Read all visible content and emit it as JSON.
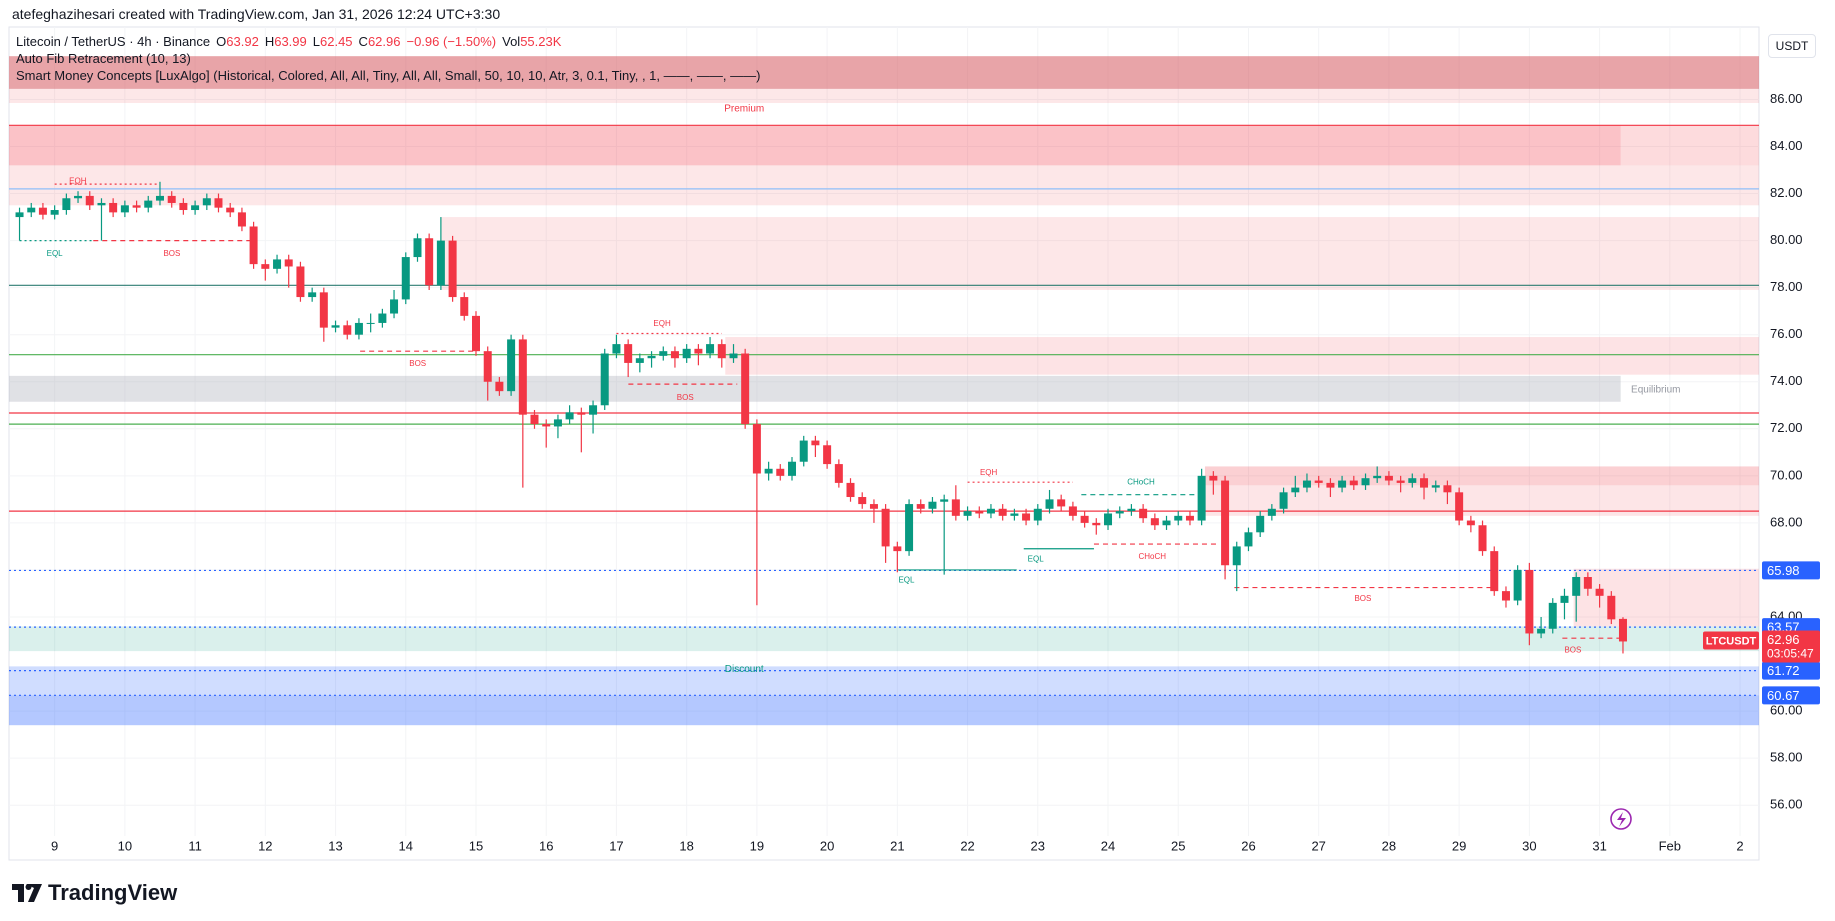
{
  "header": {
    "caption": "atefeghazihesari created with TradingView.com, Jan 31, 2026 12:24 UTC+3:30"
  },
  "legend": {
    "symbol": "Litecoin / TetherUS · 4h · Binance",
    "ohlc": [
      {
        "label": "O",
        "value": 63.92
      },
      {
        "label": "H",
        "value": 63.99
      },
      {
        "label": "L",
        "value": 62.45
      },
      {
        "label": "C",
        "value": 62.96
      }
    ],
    "change": "−0.96 (−1.50%)",
    "volume_label": "Vol",
    "volume": "55.23K",
    "indicators": [
      "Auto Fib Retracement (10, 13)",
      "Smart Money Concepts [LuxAlgo] (Historical, Colored, All, All, Tiny, All, All, Small, 50, 10, 10, Atr, 3, 0.1, Tiny, , 1, ——, ——, ——)"
    ]
  },
  "currency": "USDT",
  "brand": "TradingView",
  "chart_data": {
    "type": "candlestick",
    "up_color": "#089981",
    "down_color": "#f23645",
    "grid": true,
    "xlim": [
      8.35,
      33.27
    ],
    "ylim": [
      53.67,
      89.08
    ],
    "xticks": [
      9,
      10,
      11,
      12,
      13,
      14,
      15,
      16,
      17,
      18,
      19,
      20,
      21,
      22,
      23,
      24,
      25,
      26,
      27,
      28,
      29,
      30,
      31,
      {
        "value": 32,
        "label": "Feb"
      },
      {
        "value": 33,
        "label": "2"
      }
    ],
    "yticks": [
      {
        "value": 56,
        "label": "56.00"
      },
      {
        "value": 58,
        "label": "58.00"
      },
      {
        "value": 60,
        "label": "60.00"
      },
      {
        "value": 64,
        "label": "64.00"
      },
      {
        "value": 66,
        "label": "66.00"
      },
      {
        "value": 68,
        "label": "68.00"
      },
      {
        "value": 70,
        "label": "70.00"
      },
      {
        "value": 72,
        "label": "72.00"
      },
      {
        "value": 74,
        "label": "74.00"
      },
      {
        "value": 76,
        "label": "76.00"
      },
      {
        "value": 78,
        "label": "78.00"
      },
      {
        "value": 80,
        "label": "80.00"
      },
      {
        "value": 82,
        "label": "82.00"
      },
      {
        "value": 84,
        "label": "84.00"
      },
      {
        "value": 86,
        "label": "86.00"
      }
    ],
    "x": [
      8.5,
      8.667,
      8.833,
      9,
      9.167,
      9.333,
      9.5,
      9.667,
      9.833,
      10,
      10.167,
      10.333,
      10.5,
      10.667,
      10.833,
      11,
      11.167,
      11.333,
      11.5,
      11.667,
      11.833,
      12,
      12.167,
      12.333,
      12.5,
      12.667,
      12.833,
      13,
      13.167,
      13.333,
      13.5,
      13.667,
      13.833,
      14,
      14.167,
      14.333,
      14.5,
      14.667,
      14.833,
      15,
      15.167,
      15.333,
      15.5,
      15.667,
      15.833,
      16,
      16.167,
      16.333,
      16.5,
      16.667,
      16.833,
      17,
      17.167,
      17.333,
      17.5,
      17.667,
      17.833,
      18,
      18.167,
      18.333,
      18.5,
      18.667,
      18.833,
      19,
      19.167,
      19.333,
      19.5,
      19.667,
      19.833,
      20,
      20.167,
      20.333,
      20.5,
      20.667,
      20.833,
      21,
      21.167,
      21.333,
      21.5,
      21.667,
      21.833,
      22,
      22.167,
      22.333,
      22.5,
      22.667,
      22.833,
      23,
      23.167,
      23.333,
      23.5,
      23.667,
      23.833,
      24,
      24.167,
      24.333,
      24.5,
      24.667,
      24.833,
      25,
      25.167,
      25.333,
      25.5,
      25.667,
      25.833,
      26,
      26.167,
      26.333,
      26.5,
      26.667,
      26.833,
      27,
      27.167,
      27.333,
      27.5,
      27.667,
      27.833,
      28,
      28.167,
      28.333,
      28.5,
      28.667,
      28.833,
      29,
      29.167,
      29.333,
      29.5,
      29.667,
      29.833,
      30,
      30.167,
      30.333,
      30.5,
      30.667,
      30.833,
      31,
      31.167,
      31.333
    ],
    "open": [
      81.0,
      81.2,
      81.4,
      81.1,
      81.3,
      81.8,
      81.9,
      81.5,
      81.6,
      81.2,
      81.5,
      81.4,
      81.7,
      81.9,
      81.6,
      81.3,
      81.5,
      81.8,
      81.4,
      81.2,
      80.6,
      79.0,
      78.8,
      79.2,
      78.9,
      77.6,
      77.8,
      76.3,
      76.4,
      76.0,
      76.5,
      76.5,
      76.9,
      77.5,
      79.3,
      80.1,
      78.1,
      80.0,
      77.6,
      76.8,
      75.3,
      74.0,
      73.6,
      75.8,
      72.6,
      72.2,
      72.1,
      72.4,
      72.7,
      72.6,
      73.0,
      75.2,
      75.6,
      74.8,
      75.0,
      75.1,
      75.3,
      75.0,
      75.4,
      75.2,
      75.6,
      75.0,
      75.2,
      72.2,
      70.1,
      70.3,
      70.0,
      70.6,
      71.5,
      71.3,
      70.5,
      69.7,
      69.1,
      68.8,
      68.6,
      67.0,
      66.8,
      68.8,
      68.6,
      68.9,
      69.0,
      68.3,
      68.5,
      68.4,
      68.6,
      68.3,
      68.4,
      68.1,
      68.6,
      69.0,
      68.7,
      68.3,
      68.0,
      67.9,
      68.4,
      68.5,
      68.6,
      68.2,
      67.9,
      68.1,
      68.3,
      68.1,
      70.0,
      69.8,
      66.2,
      67.0,
      67.6,
      68.3,
      68.6,
      69.3,
      69.5,
      69.8,
      69.7,
      69.5,
      69.8,
      69.6,
      69.9,
      70.0,
      69.8,
      69.7,
      69.9,
      69.5,
      69.6,
      69.3,
      68.1,
      67.9,
      66.8,
      65.1,
      64.7,
      66.0,
      63.3,
      63.5,
      64.6,
      64.9,
      65.7,
      65.2,
      64.9,
      63.92
    ],
    "high": [
      81.4,
      81.6,
      81.6,
      81.5,
      82.0,
      82.1,
      82.1,
      81.8,
      81.8,
      81.7,
      81.7,
      81.9,
      82.5,
      82.1,
      81.8,
      81.7,
      82.0,
      82.0,
      81.6,
      81.4,
      80.8,
      79.2,
      79.4,
      79.4,
      79.1,
      78.0,
      78.0,
      76.6,
      76.6,
      76.7,
      76.9,
      77.1,
      77.9,
      79.5,
      80.3,
      80.3,
      81.0,
      80.2,
      77.8,
      77.0,
      75.5,
      74.2,
      76.0,
      76.0,
      72.8,
      72.4,
      72.6,
      73.0,
      72.9,
      73.2,
      75.4,
      76.0,
      75.8,
      75.2,
      75.3,
      75.5,
      75.5,
      75.6,
      75.6,
      75.9,
      75.8,
      75.6,
      75.4,
      72.4,
      70.6,
      70.5,
      70.8,
      71.7,
      71.7,
      71.5,
      70.7,
      69.9,
      69.3,
      69.0,
      68.8,
      67.2,
      69.0,
      69.0,
      69.1,
      69.2,
      69.6,
      68.7,
      68.7,
      68.8,
      68.8,
      68.6,
      68.6,
      68.8,
      69.4,
      69.2,
      68.9,
      68.5,
      68.2,
      68.6,
      68.7,
      68.8,
      68.8,
      68.4,
      68.3,
      68.5,
      68.5,
      70.3,
      70.2,
      70.0,
      67.2,
      67.8,
      68.5,
      68.8,
      69.5,
      70.0,
      70.1,
      70.0,
      69.9,
      70.0,
      70.0,
      70.1,
      70.4,
      70.2,
      70.0,
      70.1,
      70.1,
      69.8,
      69.8,
      69.5,
      68.3,
      68.1,
      67.0,
      65.3,
      66.2,
      66.3,
      64.0,
      64.8,
      65.2,
      65.9,
      65.9,
      65.4,
      65.1,
      63.99
    ],
    "low": [
      80.0,
      81.0,
      80.9,
      80.9,
      81.1,
      81.6,
      81.3,
      80.0,
      81.0,
      81.0,
      81.2,
      81.2,
      81.5,
      81.4,
      81.1,
      81.1,
      81.3,
      81.2,
      81.0,
      80.4,
      78.8,
      78.3,
      78.6,
      78.0,
      77.4,
      77.4,
      75.7,
      76.1,
      75.8,
      75.8,
      76.1,
      76.3,
      76.7,
      77.3,
      79.1,
      77.9,
      77.9,
      77.4,
      76.6,
      75.1,
      73.2,
      73.4,
      73.4,
      69.5,
      72.0,
      71.2,
      71.6,
      72.2,
      71.0,
      71.8,
      72.8,
      75.0,
      74.2,
      74.4,
      74.6,
      74.9,
      74.6,
      74.8,
      74.7,
      75.0,
      74.6,
      74.8,
      72.0,
      64.5,
      69.8,
      69.8,
      69.8,
      70.4,
      70.8,
      70.3,
      69.5,
      68.9,
      68.6,
      68.0,
      66.3,
      65.9,
      66.6,
      68.4,
      68.4,
      65.8,
      68.1,
      68.1,
      68.2,
      68.2,
      68.1,
      68.1,
      67.9,
      67.9,
      68.4,
      68.5,
      68.1,
      67.8,
      67.5,
      67.7,
      68.2,
      68.3,
      68.0,
      67.7,
      67.7,
      67.9,
      67.9,
      67.9,
      69.2,
      65.6,
      65.1,
      66.8,
      67.4,
      68.1,
      68.4,
      69.1,
      69.3,
      69.5,
      69.1,
      69.3,
      69.4,
      69.4,
      69.7,
      69.6,
      69.3,
      69.5,
      69.0,
      69.3,
      68.8,
      67.9,
      67.6,
      66.6,
      64.9,
      64.4,
      64.5,
      62.8,
      63.1,
      63.3,
      63.9,
      63.8,
      64.9,
      64.4,
      63.7,
      62.45
    ],
    "close": [
      81.2,
      81.4,
      81.1,
      81.3,
      81.8,
      81.9,
      81.5,
      81.6,
      81.2,
      81.5,
      81.4,
      81.7,
      81.9,
      81.6,
      81.3,
      81.5,
      81.8,
      81.4,
      81.2,
      80.6,
      79.0,
      78.8,
      79.2,
      78.9,
      77.6,
      77.8,
      76.3,
      76.4,
      76.0,
      76.5,
      76.5,
      76.9,
      77.5,
      79.3,
      80.1,
      78.1,
      80.0,
      77.6,
      76.8,
      75.3,
      74.0,
      73.6,
      75.8,
      72.6,
      72.2,
      72.1,
      72.4,
      72.7,
      72.6,
      73.0,
      75.2,
      75.6,
      74.8,
      75.0,
      75.1,
      75.3,
      75.0,
      75.4,
      75.2,
      75.6,
      75.0,
      75.2,
      72.2,
      70.1,
      70.3,
      70.0,
      70.6,
      71.5,
      71.3,
      70.5,
      69.7,
      69.1,
      68.8,
      68.6,
      67.0,
      66.8,
      68.8,
      68.6,
      68.9,
      69.0,
      68.3,
      68.5,
      68.4,
      68.6,
      68.3,
      68.4,
      68.1,
      68.6,
      69.0,
      68.7,
      68.3,
      68.0,
      67.9,
      68.4,
      68.5,
      68.6,
      68.2,
      67.9,
      68.1,
      68.3,
      68.1,
      70.0,
      69.8,
      66.2,
      67.0,
      67.6,
      68.3,
      68.6,
      69.3,
      69.5,
      69.8,
      69.7,
      69.5,
      69.8,
      69.6,
      69.9,
      70.0,
      69.8,
      69.7,
      69.9,
      69.5,
      69.6,
      69.3,
      68.1,
      67.9,
      66.8,
      65.1,
      64.7,
      66.0,
      63.3,
      63.5,
      64.6,
      64.9,
      65.7,
      65.2,
      64.9,
      63.9,
      62.96
    ],
    "zones": [
      {
        "top": 87.84,
        "bottom": 86.45,
        "from": 8.35,
        "to": 33.27,
        "color": "rgba(214,90,96,0.55)"
      },
      {
        "top": 86.45,
        "bottom": 85.85,
        "from": 8.35,
        "to": 33.27,
        "color": "rgba(242,54,69,0.12)"
      },
      {
        "top": 84.9,
        "bottom": 83.2,
        "from": 8.35,
        "to": 31.3,
        "color": "rgba(242,54,69,0.3)"
      },
      {
        "top": 84.9,
        "bottom": 83.2,
        "from": 31.3,
        "to": 33.27,
        "color": "rgba(242,54,69,0.18)"
      },
      {
        "top": 83.2,
        "bottom": 81.5,
        "from": 8.35,
        "to": 33.27,
        "color": "rgba(242,54,69,0.12)"
      },
      {
        "top": 81.0,
        "bottom": 77.9,
        "from": 14.5,
        "to": 33.27,
        "color": "rgba(242,54,69,0.12)"
      },
      {
        "top": 75.9,
        "bottom": 74.3,
        "from": 18.55,
        "to": 33.27,
        "color": "rgba(242,54,69,0.14)"
      },
      {
        "top": 74.25,
        "bottom": 73.15,
        "from": 8.35,
        "to": 31.3,
        "color": "rgba(178,181,190,0.4)"
      },
      {
        "top": 70.4,
        "bottom": 68.3,
        "from": 25.38,
        "to": 33.27,
        "color": "rgba(242,54,69,0.13)"
      },
      {
        "top": 70.4,
        "bottom": 69.6,
        "from": 25.38,
        "to": 33.27,
        "color": "rgba(242,54,69,0.12)"
      },
      {
        "top": 66.05,
        "bottom": 63.6,
        "from": 30.63,
        "to": 33.27,
        "color": "rgba(242,54,69,0.14)"
      },
      {
        "top": 63.6,
        "bottom": 62.55,
        "from": 8.35,
        "to": 33.27,
        "color": "rgba(8,153,129,0.15)"
      },
      {
        "top": 61.9,
        "bottom": 60.67,
        "from": 8.35,
        "to": 33.27,
        "color": "rgba(41,98,255,0.22)"
      },
      {
        "top": 60.67,
        "bottom": 59.4,
        "from": 8.35,
        "to": 33.27,
        "color": "rgba(41,98,255,0.35)"
      }
    ],
    "levels": [
      {
        "price": 84.9,
        "from": 8.35,
        "to": 33.27,
        "color": "#f23645",
        "style": "solid"
      },
      {
        "price": 82.2,
        "from": 8.35,
        "to": 33.27,
        "color": "#90bff9",
        "style": "solid"
      },
      {
        "price": 78.1,
        "from": 8.35,
        "to": 33.27,
        "color": "#2e7d72",
        "style": "solid"
      },
      {
        "price": 75.15,
        "from": 8.35,
        "to": 33.27,
        "color": "#4caf50",
        "style": "solid"
      },
      {
        "price": 72.67,
        "from": 8.35,
        "to": 33.27,
        "color": "#f23645",
        "style": "solid"
      },
      {
        "price": 72.2,
        "from": 8.35,
        "to": 33.27,
        "color": "#4caf50",
        "style": "solid"
      },
      {
        "price": 68.5,
        "from": 8.35,
        "to": 33.27,
        "color": "#f23645",
        "style": "solid"
      },
      {
        "price": 65.98,
        "from": 8.35,
        "to": 33.27,
        "color": "#2962ff",
        "style": "dotted"
      },
      {
        "price": 63.57,
        "from": 8.35,
        "to": 33.27,
        "color": "#2962ff",
        "style": "dotted"
      },
      {
        "price": 61.72,
        "from": 8.35,
        "to": 33.27,
        "color": "#2962ff",
        "style": "dotted"
      },
      {
        "price": 60.67,
        "from": 8.35,
        "to": 33.27,
        "color": "#2962ff",
        "style": "dotted"
      },
      {
        "price": 82.4,
        "from": 9.0,
        "to": 10.5,
        "color": "#f23645",
        "style": "dotted"
      },
      {
        "price": 80.0,
        "from": 8.5,
        "to": 9.55,
        "color": "#089981",
        "style": "dotted"
      },
      {
        "price": 80.0,
        "from": 9.55,
        "to": 11.8,
        "color": "#f23645",
        "style": "dashed"
      },
      {
        "price": 75.3,
        "from": 13.35,
        "to": 14.97,
        "color": "#f23645",
        "style": "dashed"
      },
      {
        "price": 76.05,
        "from": 17.0,
        "to": 18.5,
        "color": "#f23645",
        "style": "dotted"
      },
      {
        "price": 73.9,
        "from": 17.17,
        "to": 18.72,
        "color": "#f23645",
        "style": "dashed"
      },
      {
        "price": 69.73,
        "from": 22.0,
        "to": 23.5,
        "color": "#f23645",
        "style": "dotted"
      },
      {
        "price": 66.0,
        "from": 21.0,
        "to": 22.7,
        "color": "#089981",
        "style": "solid"
      },
      {
        "price": 66.9,
        "from": 22.8,
        "to": 23.8,
        "color": "#089981",
        "style": "solid"
      },
      {
        "price": 69.2,
        "from": 23.62,
        "to": 25.25,
        "color": "#089981",
        "style": "dashed"
      },
      {
        "price": 67.1,
        "from": 23.8,
        "to": 25.55,
        "color": "#f23645",
        "style": "dashed"
      },
      {
        "price": 65.25,
        "from": 25.8,
        "to": 29.47,
        "color": "#f23645",
        "style": "dashed"
      },
      {
        "price": 63.1,
        "from": 30.47,
        "to": 31.3,
        "color": "#f23645",
        "style": "dashed"
      }
    ],
    "annotations": [
      {
        "text": "EQH",
        "x": 9.33,
        "y": 82.52,
        "color": "#f23645"
      },
      {
        "text": "EQL",
        "x": 9.0,
        "y": 79.43,
        "color": "#089981"
      },
      {
        "text": "BOS",
        "x": 10.67,
        "y": 79.43,
        "color": "#f23645"
      },
      {
        "text": "BOS",
        "x": 14.17,
        "y": 74.76,
        "color": "#f23645"
      },
      {
        "text": "EQH",
        "x": 17.65,
        "y": 76.45,
        "color": "#f23645"
      },
      {
        "text": "BOS",
        "x": 17.98,
        "y": 73.31,
        "color": "#f23645"
      },
      {
        "text": "EQH",
        "x": 22.3,
        "y": 70.13,
        "color": "#f23645"
      },
      {
        "text": "EQL",
        "x": 21.13,
        "y": 65.55,
        "color": "#089981"
      },
      {
        "text": "EQL",
        "x": 22.97,
        "y": 66.45,
        "color": "#089981"
      },
      {
        "text": "CHoCH",
        "x": 24.47,
        "y": 69.73,
        "color": "#089981"
      },
      {
        "text": "CHoCH",
        "x": 24.63,
        "y": 66.55,
        "color": "#f23645"
      },
      {
        "text": "BOS",
        "x": 27.63,
        "y": 64.76,
        "color": "#f23645"
      },
      {
        "text": "BOS",
        "x": 30.62,
        "y": 62.57,
        "color": "#f23645"
      },
      {
        "text": "Premium",
        "x": 18.82,
        "y": 85.6,
        "color": "#f23645"
      },
      {
        "text": "Discount",
        "x": 18.82,
        "y": 61.77,
        "color": "#089981"
      },
      {
        "text": "Equilibrium",
        "x": 31.8,
        "y": 73.66,
        "color": "#9598a1"
      }
    ],
    "price_tags": [
      {
        "value": 65.98,
        "color": "#2962ff"
      },
      {
        "value": 63.57,
        "color": "#2962ff"
      },
      {
        "value": 61.72,
        "color": "#2962ff"
      },
      {
        "value": 60.67,
        "color": "#2962ff"
      }
    ],
    "last_price": {
      "symbol": "LTCUSDT",
      "value": 62.96,
      "countdown": "03:05:47",
      "color": "#f23645"
    }
  }
}
